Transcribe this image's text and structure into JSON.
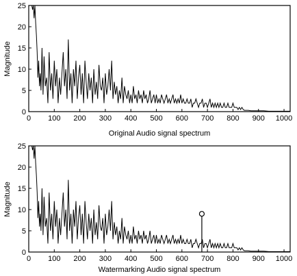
{
  "chart_data": [
    {
      "type": "line",
      "xlabel": "Original Audio signal spectrum",
      "ylabel": "Magnitude",
      "xlim": [
        0,
        1024
      ],
      "ylim": [
        0,
        25
      ],
      "xticks": [
        "0",
        "100",
        "200",
        "300",
        "400",
        "500",
        "600",
        "700",
        "800",
        "900",
        "1000"
      ],
      "yticks": [
        "0",
        "5",
        "10",
        "15",
        "20",
        "25"
      ],
      "grid": false,
      "line_color": "#000000",
      "series": [
        {
          "x": [
            3,
            6,
            9,
            12,
            15,
            18,
            21,
            24,
            27,
            30,
            33,
            36,
            39,
            42,
            45,
            48,
            52,
            56,
            60,
            65,
            70,
            75,
            80,
            85,
            90,
            95,
            100,
            105,
            110,
            115,
            120,
            125,
            130,
            135,
            140,
            145,
            150,
            155,
            160,
            165,
            170,
            175,
            180,
            185,
            190,
            195,
            200,
            205,
            210,
            215,
            220,
            225,
            230,
            235,
            240,
            245,
            250,
            255,
            260,
            265,
            270,
            275,
            280,
            285,
            290,
            295,
            300,
            305,
            310,
            315,
            320,
            325,
            330,
            335,
            340,
            345,
            350,
            355,
            360,
            365,
            370,
            375,
            380,
            385,
            390,
            395,
            400,
            405,
            410,
            415,
            420,
            425,
            430,
            435,
            440,
            445,
            450,
            455,
            460,
            465,
            470,
            475,
            480,
            485,
            490,
            495,
            500,
            505,
            510,
            515,
            520,
            525,
            530,
            535,
            540,
            545,
            550,
            555,
            560,
            565,
            570,
            575,
            580,
            585,
            590,
            595,
            600,
            605,
            610,
            615,
            620,
            625,
            630,
            635,
            640,
            645,
            650,
            655,
            660,
            665,
            670,
            675,
            680,
            685,
            690,
            695,
            700,
            705,
            710,
            715,
            720,
            725,
            730,
            735,
            740,
            745,
            750,
            755,
            760,
            765,
            770,
            775,
            780,
            785,
            790,
            795,
            800,
            805,
            810,
            815,
            820,
            825,
            830,
            835,
            840,
            845,
            850,
            860,
            870,
            880,
            890,
            900,
            920,
            940,
            960,
            980,
            1000,
            1024
          ],
          "y": [
            25,
            25,
            25,
            25,
            24,
            25,
            22,
            25,
            21,
            18,
            14,
            8,
            12,
            6,
            9,
            5,
            15,
            4,
            13,
            6,
            8,
            2,
            14,
            5,
            9,
            3,
            12,
            6,
            10,
            2,
            8,
            4,
            9,
            14,
            6,
            10,
            3,
            17,
            5,
            9,
            2,
            10,
            6,
            12,
            3,
            8,
            11,
            4,
            9,
            2,
            12,
            7,
            3,
            9,
            5,
            8,
            2,
            10,
            4,
            7,
            3,
            11,
            6,
            5,
            8,
            2,
            9,
            4,
            6,
            10,
            5,
            12,
            3,
            7,
            4,
            6,
            2,
            5,
            3,
            8,
            2,
            6,
            4,
            3,
            5,
            2,
            4,
            2,
            6,
            3,
            4,
            2,
            5,
            3,
            4,
            2,
            5,
            3,
            4,
            2,
            3,
            5,
            2,
            3,
            4,
            2,
            4,
            2,
            3,
            2,
            4,
            3,
            2,
            3,
            4,
            2,
            3,
            2,
            3,
            4,
            2,
            3,
            2,
            3,
            2,
            4,
            2,
            3,
            2,
            2,
            3,
            2,
            2,
            3,
            1,
            2,
            2,
            3,
            2,
            1,
            2,
            2,
            3,
            1,
            2,
            2,
            1,
            2,
            3,
            1,
            2,
            1,
            2,
            1,
            2,
            1,
            2,
            1,
            1,
            2,
            1,
            1,
            2,
            1,
            1,
            1,
            2,
            1,
            1,
            1,
            0.5,
            1,
            0.5,
            1,
            0.5,
            0.3,
            0.3,
            0.3,
            0.2,
            0.2,
            0.2,
            0.2,
            0.2,
            0.1,
            0.1,
            0.1,
            0.1,
            0.1
          ]
        }
      ]
    },
    {
      "type": "line",
      "xlabel": "Watermarking Audio signal spectrum",
      "ylabel": "Magnitude",
      "xlim": [
        0,
        1024
      ],
      "ylim": [
        0,
        25
      ],
      "xticks": [
        "0",
        "100",
        "200",
        "300",
        "400",
        "500",
        "600",
        "700",
        "800",
        "900",
        "1000"
      ],
      "yticks": [
        "0",
        "5",
        "10",
        "15",
        "20",
        "25"
      ],
      "grid": false,
      "line_color": "#000000",
      "series": [
        {
          "x": [
            3,
            6,
            9,
            12,
            15,
            18,
            21,
            24,
            27,
            30,
            33,
            36,
            39,
            42,
            45,
            48,
            52,
            56,
            60,
            65,
            70,
            75,
            80,
            85,
            90,
            95,
            100,
            105,
            110,
            115,
            120,
            125,
            130,
            135,
            140,
            145,
            150,
            155,
            160,
            165,
            170,
            175,
            180,
            185,
            190,
            195,
            200,
            205,
            210,
            215,
            220,
            225,
            230,
            235,
            240,
            245,
            250,
            255,
            260,
            265,
            270,
            275,
            280,
            285,
            290,
            295,
            300,
            305,
            310,
            315,
            320,
            325,
            330,
            335,
            340,
            345,
            350,
            355,
            360,
            365,
            370,
            375,
            380,
            385,
            390,
            395,
            400,
            405,
            410,
            415,
            420,
            425,
            430,
            435,
            440,
            445,
            450,
            455,
            460,
            465,
            470,
            475,
            480,
            485,
            490,
            495,
            500,
            505,
            510,
            515,
            520,
            525,
            530,
            535,
            540,
            545,
            550,
            555,
            560,
            565,
            570,
            575,
            580,
            585,
            590,
            595,
            600,
            605,
            610,
            615,
            620,
            625,
            630,
            635,
            640,
            645,
            650,
            655,
            660,
            665,
            670,
            675,
            680,
            685,
            690,
            695,
            700,
            705,
            710,
            715,
            720,
            725,
            730,
            735,
            740,
            745,
            750,
            755,
            760,
            765,
            770,
            775,
            780,
            785,
            790,
            795,
            800,
            805,
            810,
            815,
            820,
            825,
            830,
            835,
            840,
            845,
            850,
            860,
            870,
            880,
            890,
            900,
            920,
            940,
            960,
            980,
            1000,
            1024
          ],
          "y": [
            25,
            25,
            25,
            25,
            24,
            25,
            22,
            25,
            21,
            18,
            14,
            8,
            12,
            6,
            9,
            5,
            15,
            4,
            13,
            6,
            8,
            2,
            14,
            5,
            9,
            3,
            12,
            6,
            10,
            2,
            8,
            4,
            9,
            14,
            6,
            10,
            3,
            17,
            5,
            9,
            2,
            10,
            6,
            12,
            3,
            8,
            11,
            4,
            9,
            2,
            12,
            7,
            3,
            9,
            5,
            8,
            2,
            10,
            4,
            7,
            3,
            11,
            6,
            5,
            8,
            2,
            9,
            4,
            6,
            10,
            5,
            12,
            3,
            7,
            4,
            6,
            2,
            5,
            3,
            8,
            2,
            6,
            4,
            3,
            5,
            2,
            4,
            2,
            6,
            3,
            4,
            2,
            5,
            3,
            4,
            2,
            5,
            3,
            4,
            2,
            3,
            5,
            2,
            3,
            4,
            2,
            4,
            2,
            3,
            2,
            4,
            3,
            2,
            3,
            4,
            2,
            3,
            2,
            3,
            4,
            2,
            3,
            2,
            3,
            2,
            4,
            2,
            3,
            2,
            2,
            3,
            2,
            2,
            3,
            1,
            2,
            2,
            3,
            2,
            1,
            2,
            2,
            3,
            1,
            2,
            2,
            1,
            2,
            3,
            1,
            2,
            1,
            2,
            1,
            2,
            1,
            2,
            1,
            1,
            2,
            1,
            1,
            2,
            1,
            1,
            1,
            2,
            1,
            1,
            1,
            0.5,
            1,
            0.5,
            1,
            0.5,
            0.3,
            0.3,
            0.3,
            0.2,
            0.2,
            0.2,
            0.2,
            0.2,
            0.1,
            0.1,
            0.1,
            0.1,
            0.1
          ]
        }
      ],
      "stem": {
        "x": 678,
        "y": 9
      }
    }
  ]
}
